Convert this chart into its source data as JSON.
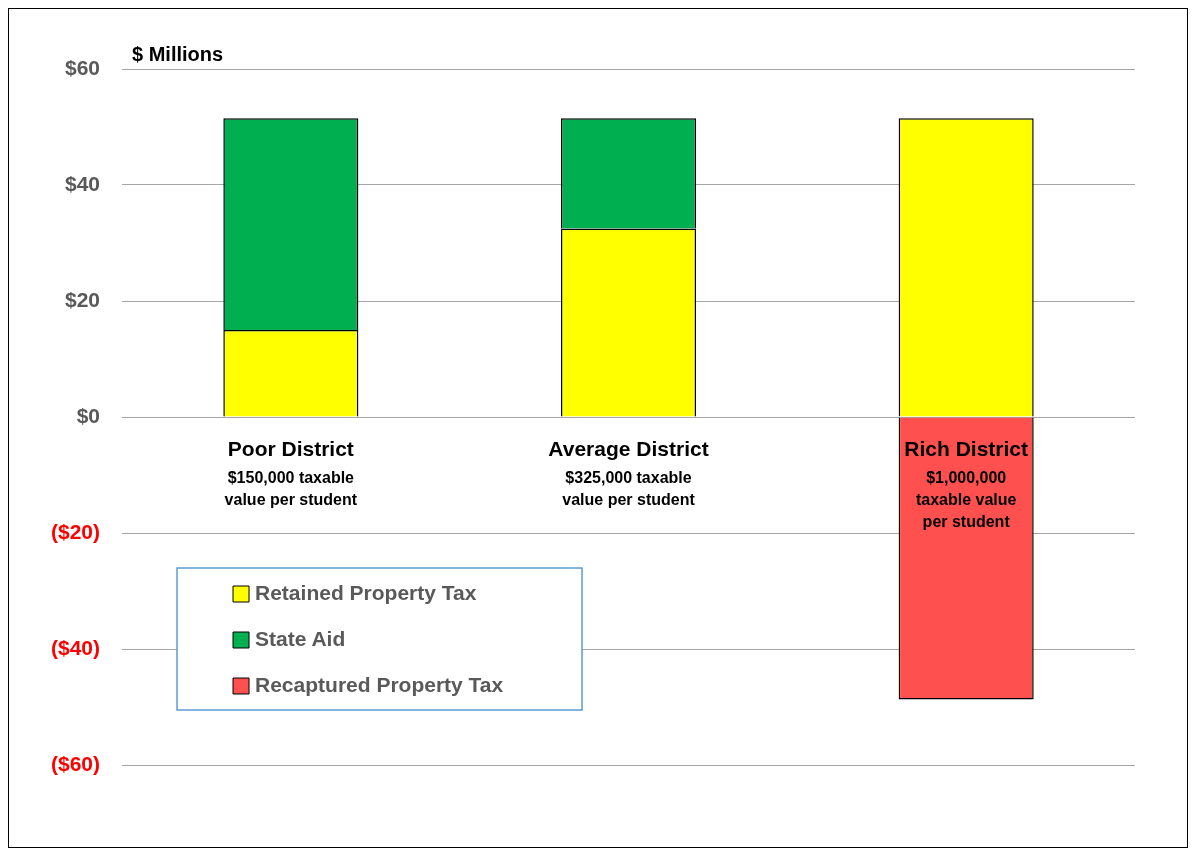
{
  "chart_data": {
    "type": "bar",
    "stacked": true,
    "ylabel": "$ Millions",
    "categories": [
      "Poor District",
      "Average District",
      "Rich District"
    ],
    "series": [
      {
        "name": "Retained Property Tax",
        "color": "#ffff00",
        "values": [
          15,
          32.5,
          51.5
        ]
      },
      {
        "name": "State Aid",
        "color": "#00b050",
        "values": [
          36.5,
          19,
          null
        ]
      },
      {
        "name": "Recaptured Property Tax",
        "color": "#ff5050",
        "values": [
          null,
          null,
          -48.7
        ]
      }
    ],
    "ylim": [
      -60,
      60
    ],
    "yticks": [
      {
        "value": -60,
        "label": "($60)"
      },
      {
        "value": -40,
        "label": "($40)"
      },
      {
        "value": -20,
        "label": "($20)"
      },
      {
        "value": 0,
        "label": "$0"
      },
      {
        "value": 20,
        "label": "$20"
      },
      {
        "value": 40,
        "label": "$40"
      },
      {
        "value": 60,
        "label": "$60"
      }
    ],
    "grid": "y",
    "legend": "bottom left",
    "annotations": [
      "$150,000 taxable\nvalue per student",
      "$325,000 taxable\nvalue per student",
      "$1,000,000\ntaxable value\nper student"
    ]
  }
}
